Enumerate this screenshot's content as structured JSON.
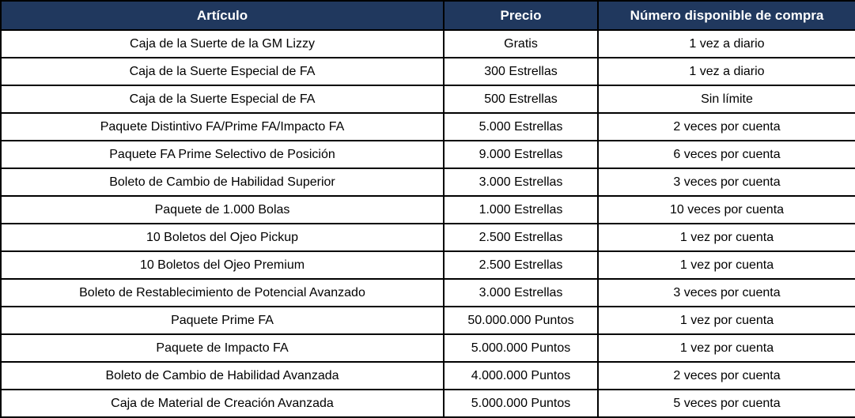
{
  "table": {
    "columns": [
      {
        "label": "Artículo"
      },
      {
        "label": "Precio"
      },
      {
        "label": "Número disponible de compra"
      }
    ],
    "rows": [
      {
        "item": "Caja de la Suerte de la GM Lizzy",
        "price": "Gratis",
        "limit": "1 vez a diario"
      },
      {
        "item": "Caja de la Suerte Especial de FA",
        "price": "300 Estrellas",
        "limit": "1 vez a diario"
      },
      {
        "item": "Caja de la Suerte Especial de FA",
        "price": "500 Estrellas",
        "limit": "Sin límite"
      },
      {
        "item": "Paquete Distintivo FA/Prime FA/Impacto FA",
        "price": "5.000 Estrellas",
        "limit": "2 veces por cuenta"
      },
      {
        "item": "Paquete FA Prime Selectivo de Posición",
        "price": "9.000 Estrellas",
        "limit": "6 veces por cuenta"
      },
      {
        "item": "Boleto de Cambio de Habilidad Superior",
        "price": "3.000 Estrellas",
        "limit": "3 veces por cuenta"
      },
      {
        "item": "Paquete de 1.000 Bolas",
        "price": "1.000 Estrellas",
        "limit": "10 veces por cuenta"
      },
      {
        "item": "10 Boletos del Ojeo Pickup",
        "price": "2.500 Estrellas",
        "limit": "1 vez por cuenta"
      },
      {
        "item": "10 Boletos del Ojeo Premium",
        "price": "2.500 Estrellas",
        "limit": "1 vez por cuenta"
      },
      {
        "item": "Boleto de Restablecimiento de Potencial Avanzado",
        "price": "3.000 Estrellas",
        "limit": "3 veces por cuenta"
      },
      {
        "item": "Paquete Prime FA",
        "price": "50.000.000 Puntos",
        "limit": "1 vez por cuenta"
      },
      {
        "item": "Paquete de Impacto FA",
        "price": "5.000.000 Puntos",
        "limit": "1 vez por cuenta"
      },
      {
        "item": "Boleto de Cambio de Habilidad Avanzada",
        "price": "4.000.000 Puntos",
        "limit": "2 veces por cuenta"
      },
      {
        "item": "Caja de Material de Creación Avanzada",
        "price": "5.000.000 Puntos",
        "limit": "5 veces por cuenta"
      }
    ],
    "colors": {
      "header_bg": "#20385E",
      "header_text": "#FFFFFF",
      "border": "#000000",
      "row_bg": "#FFFFFF",
      "row_text": "#000000"
    }
  }
}
